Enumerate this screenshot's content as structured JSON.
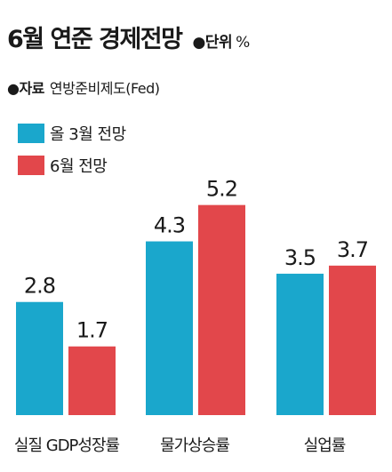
{
  "header": {
    "title": "6월 연준 경제전망",
    "unit_label": "●단위",
    "unit_value": "%"
  },
  "source": {
    "label": "●자료",
    "value": "연방준비제도(Fed)"
  },
  "chart_data": {
    "type": "bar",
    "title": "6월 연준 경제전망",
    "categories": [
      "실질 GDP성장률",
      "물가상승률",
      "실업률"
    ],
    "series": [
      {
        "name": "올 3월 전망",
        "values": [
          2.8,
          4.3,
          3.5
        ],
        "color": "#1aa7cc"
      },
      {
        "name": "6월 전망",
        "values": [
          1.7,
          5.2,
          3.7
        ],
        "color": "#e2474b"
      }
    ],
    "ylim": [
      0,
      6.6
    ],
    "grid": false,
    "legend": "top-left"
  }
}
